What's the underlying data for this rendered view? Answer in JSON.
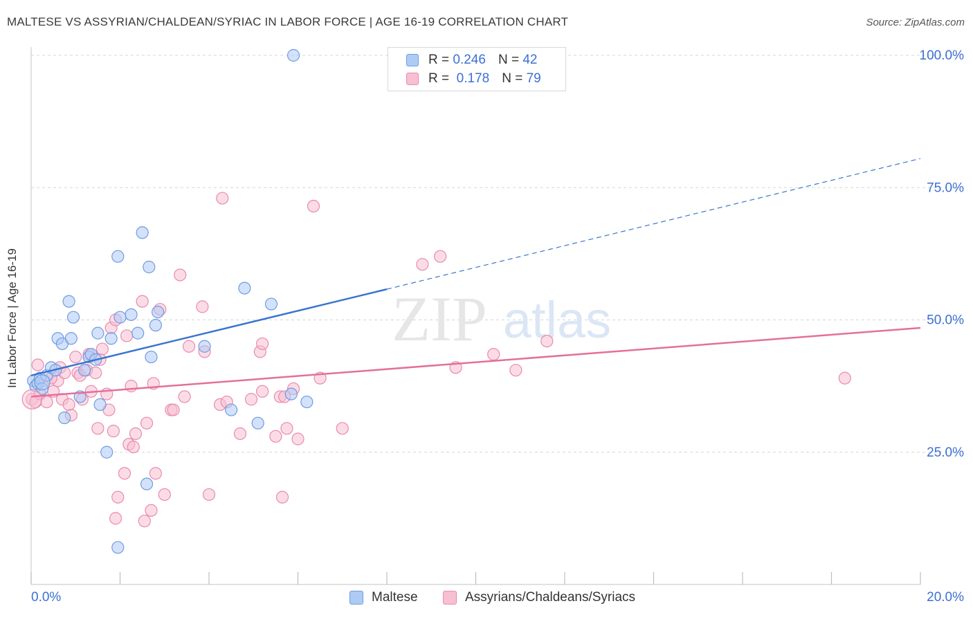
{
  "title": "MALTESE VS ASSYRIAN/CHALDEAN/SYRIAC IN LABOR FORCE | AGE 16-19 CORRELATION CHART",
  "source": "Source: ZipAtlas.com",
  "watermark": {
    "zip": "ZIP",
    "atlas": "atlas"
  },
  "legend": {
    "maltese": {
      "r_label": "R =",
      "r_value": "0.246",
      "n_label": "N =",
      "n_value": "42"
    },
    "assyrian": {
      "r_label": "R =",
      "r_value": "0.178",
      "n_label": "N =",
      "n_value": "79"
    }
  },
  "bottom_legend": {
    "maltese": "Maltese",
    "assyrian": "Assyrians/Chaldeans/Syriacs"
  },
  "colors": {
    "maltese_fill": "#aecbf5",
    "maltese_stroke": "#6f9be0",
    "maltese_line": "#3a74d0",
    "assyrian_fill": "#f7bfd2",
    "assyrian_stroke": "#e98aad",
    "assyrian_line": "#e46f9a",
    "tick_text": "#3b6fd4",
    "grid": "#d5d5d5"
  },
  "chart_data": {
    "type": "scatter",
    "title": "MALTESE VS ASSYRIAN/CHALDEAN/SYRIAC IN LABOR FORCE | AGE 16-19 CORRELATION CHART",
    "xlabel": "",
    "ylabel": "In Labor Force | Age 16-19",
    "xlim": [
      0,
      20
    ],
    "ylim": [
      0,
      100
    ],
    "x_tick_labels": [
      "0.0%",
      "20.0%"
    ],
    "y_ticks": [
      25,
      50,
      75,
      100
    ],
    "y_tick_labels": [
      "25.0%",
      "50.0%",
      "75.0%",
      "100.0%"
    ],
    "series": [
      {
        "name": "Maltese",
        "R": 0.246,
        "N": 42,
        "trend": {
          "x0": 0,
          "y0": 39.5,
          "x1": 8.0,
          "y1": 55.8,
          "dashed_to_x": 20,
          "dashed_to_y": 80.5
        },
        "points": [
          [
            0.05,
            38.5
          ],
          [
            0.1,
            37.5
          ],
          [
            0.15,
            38.0
          ],
          [
            0.2,
            39.0
          ],
          [
            0.25,
            37.0
          ],
          [
            0.35,
            39.5
          ],
          [
            0.45,
            41.0
          ],
          [
            0.55,
            40.5
          ],
          [
            0.6,
            46.5
          ],
          [
            0.7,
            45.5
          ],
          [
            0.75,
            31.5
          ],
          [
            0.85,
            53.5
          ],
          [
            0.9,
            46.5
          ],
          [
            0.95,
            50.5
          ],
          [
            1.1,
            35.5
          ],
          [
            1.2,
            40.5
          ],
          [
            1.3,
            43.0
          ],
          [
            1.35,
            43.5
          ],
          [
            1.45,
            42.5
          ],
          [
            1.5,
            47.5
          ],
          [
            1.55,
            34.0
          ],
          [
            1.7,
            25.0
          ],
          [
            1.8,
            46.5
          ],
          [
            1.95,
            62.0
          ],
          [
            2.0,
            50.5
          ],
          [
            2.25,
            51.0
          ],
          [
            2.4,
            47.5
          ],
          [
            2.5,
            66.5
          ],
          [
            2.6,
            19.0
          ],
          [
            2.65,
            60.0
          ],
          [
            2.7,
            43.0
          ],
          [
            2.8,
            49.0
          ],
          [
            2.85,
            51.5
          ],
          [
            1.95,
            7.0
          ],
          [
            3.9,
            45.0
          ],
          [
            4.5,
            33.0
          ],
          [
            4.8,
            56.0
          ],
          [
            5.1,
            30.5
          ],
          [
            5.4,
            53.0
          ],
          [
            5.85,
            36.0
          ],
          [
            6.2,
            34.5
          ],
          [
            5.9,
            100.0
          ]
        ]
      },
      {
        "name": "Assyrians/Chaldeans/Syriacs",
        "R": 0.178,
        "N": 79,
        "trend": {
          "x0": 0,
          "y0": 35.5,
          "x1": 20,
          "y1": 48.5
        },
        "points": [
          [
            0.02,
            35.0
          ],
          [
            0.1,
            34.5
          ],
          [
            0.2,
            36.0
          ],
          [
            0.3,
            38.5
          ],
          [
            0.35,
            34.5
          ],
          [
            0.5,
            36.5
          ],
          [
            0.6,
            38.5
          ],
          [
            0.65,
            41.0
          ],
          [
            0.7,
            35.0
          ],
          [
            0.75,
            40.0
          ],
          [
            0.85,
            34.0
          ],
          [
            0.9,
            32.0
          ],
          [
            1.0,
            43.0
          ],
          [
            1.05,
            40.0
          ],
          [
            1.1,
            39.5
          ],
          [
            1.15,
            35.0
          ],
          [
            1.25,
            40.5
          ],
          [
            1.3,
            43.5
          ],
          [
            1.35,
            36.5
          ],
          [
            1.45,
            40.0
          ],
          [
            1.5,
            29.5
          ],
          [
            1.55,
            42.5
          ],
          [
            1.6,
            44.5
          ],
          [
            1.7,
            36.0
          ],
          [
            1.75,
            33.0
          ],
          [
            1.8,
            48.5
          ],
          [
            1.85,
            29.0
          ],
          [
            1.9,
            12.5
          ],
          [
            1.9,
            50.0
          ],
          [
            2.1,
            21.0
          ],
          [
            2.15,
            47.0
          ],
          [
            2.2,
            26.5
          ],
          [
            2.25,
            37.5
          ],
          [
            2.3,
            26.0
          ],
          [
            2.35,
            28.5
          ],
          [
            2.5,
            53.5
          ],
          [
            2.55,
            12.0
          ],
          [
            2.6,
            30.5
          ],
          [
            2.7,
            14.0
          ],
          [
            2.75,
            38.0
          ],
          [
            2.8,
            21.0
          ],
          [
            2.9,
            52.0
          ],
          [
            3.0,
            17.0
          ],
          [
            3.15,
            33.0
          ],
          [
            3.2,
            33.0
          ],
          [
            3.35,
            58.5
          ],
          [
            3.45,
            35.5
          ],
          [
            3.55,
            45.0
          ],
          [
            3.85,
            52.5
          ],
          [
            3.9,
            44.0
          ],
          [
            4.0,
            17.0
          ],
          [
            4.25,
            34.0
          ],
          [
            4.4,
            34.5
          ],
          [
            4.3,
            73.0
          ],
          [
            4.7,
            28.5
          ],
          [
            4.95,
            35.0
          ],
          [
            5.15,
            44.0
          ],
          [
            5.2,
            45.5
          ],
          [
            5.2,
            36.5
          ],
          [
            5.5,
            28.0
          ],
          [
            5.6,
            35.5
          ],
          [
            5.65,
            16.5
          ],
          [
            5.7,
            35.5
          ],
          [
            5.75,
            29.5
          ],
          [
            5.9,
            37.0
          ],
          [
            6.0,
            27.5
          ],
          [
            6.5,
            39.0
          ],
          [
            6.35,
            71.5
          ],
          [
            7.0,
            29.5
          ],
          [
            8.8,
            60.5
          ],
          [
            9.2,
            62.0
          ],
          [
            9.55,
            41.0
          ],
          [
            10.4,
            43.5
          ],
          [
            10.9,
            40.5
          ],
          [
            11.6,
            46.0
          ],
          [
            18.3,
            39.0
          ],
          [
            0.15,
            41.5
          ],
          [
            0.45,
            39.0
          ],
          [
            1.95,
            16.5
          ]
        ]
      }
    ]
  }
}
